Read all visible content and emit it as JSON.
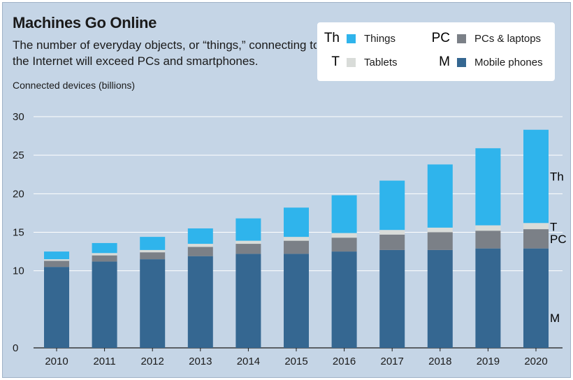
{
  "title": "Machines Go Online",
  "subtitle": "The number of everyday objects, or “things,” connecting to the Internet will exceed PCs and smartphones.",
  "ylabel": "Connected devices (billions)",
  "legend": [
    {
      "abbr": "Th",
      "name": "Things",
      "color": "#2fb4ec"
    },
    {
      "abbr": "T",
      "name": "Tablets",
      "color": "#d9dcd9"
    },
    {
      "abbr": "PC",
      "name": "PCs & laptops",
      "color": "#7b8087"
    },
    {
      "abbr": "M",
      "name": "Mobile phones",
      "color": "#356791"
    }
  ],
  "chart_data": {
    "type": "bar",
    "stacked": true,
    "categories": [
      "2010",
      "2011",
      "2012",
      "2013",
      "2014",
      "2015",
      "2016",
      "2017",
      "2018",
      "2019",
      "2020"
    ],
    "ylim": [
      0,
      30
    ],
    "yticks": [
      0,
      10,
      15,
      20,
      25,
      30
    ],
    "grid": true,
    "series": [
      {
        "name": "Mobile phones",
        "abbr": "M",
        "color": "#356791",
        "values": [
          10.5,
          11.2,
          11.5,
          11.9,
          12.2,
          12.2,
          12.5,
          12.7,
          12.7,
          12.9,
          12.9
        ]
      },
      {
        "name": "PCs & laptops",
        "abbr": "PC",
        "color": "#7b8087",
        "values": [
          0.8,
          0.8,
          0.9,
          1.2,
          1.3,
          1.7,
          1.8,
          2.0,
          2.3,
          2.3,
          2.5
        ]
      },
      {
        "name": "Tablets",
        "abbr": "T",
        "color": "#d9dcd9",
        "values": [
          0.2,
          0.3,
          0.3,
          0.4,
          0.4,
          0.5,
          0.6,
          0.6,
          0.6,
          0.7,
          0.8
        ]
      },
      {
        "name": "Things",
        "abbr": "Th",
        "color": "#2fb4ec",
        "values": [
          1.0,
          1.3,
          1.7,
          2.0,
          2.9,
          3.8,
          4.9,
          6.4,
          8.2,
          10.0,
          12.1
        ]
      }
    ]
  }
}
